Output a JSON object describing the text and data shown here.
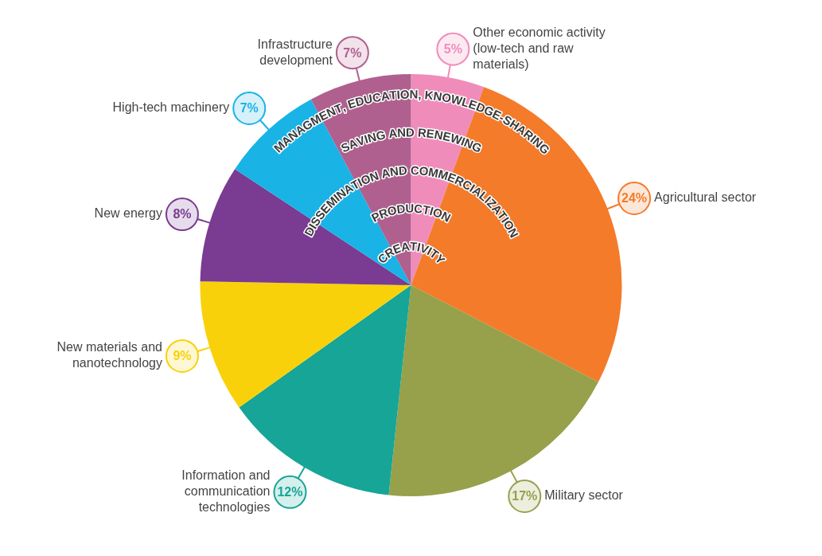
{
  "chart_data": {
    "type": "pie",
    "categories": [
      "Other economic activity (low-tech and raw materials)",
      "Agricultural sector",
      "Military sector",
      "Information and communication technologies",
      "New materials and nanotechnology",
      "New energy",
      "High-tech machinery",
      "Infrastructure development"
    ],
    "values": [
      5,
      24,
      17,
      12,
      9,
      8,
      7,
      7
    ],
    "value_labels": [
      "5%",
      "24%",
      "17%",
      "12%",
      "9%",
      "8%",
      "7%",
      "7%"
    ],
    "colors": [
      "#f08cba",
      "#f47b2a",
      "#97a04a",
      "#16a596",
      "#f9d10a",
      "#7a3b92",
      "#19b3e6",
      "#b0608f"
    ],
    "annotations": [
      "MANAGMENT, EDUCATION, KNOWLEDGE-SHARING",
      "SAVING AND RENEWING",
      "DISSEMINATION AND COMMERCIALIZATION",
      "PRODUCTION",
      "CREATIVITY"
    ],
    "legend": false
  }
}
